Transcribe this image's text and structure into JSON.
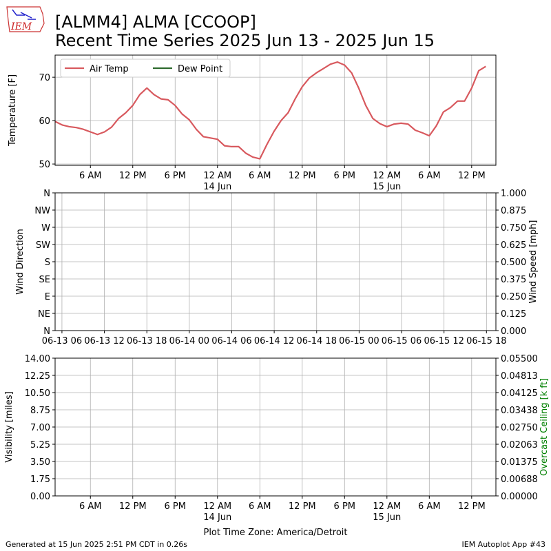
{
  "logo": "IEM",
  "title": "[ALMM4] ALMA [CCOOP]",
  "subtitle": "Recent Time Series 2025 Jun 13 - 2025 Jun 15",
  "generated": "Generated at 15 Jun 2025 2:51 PM CDT in 0.26s",
  "app": "IEM Autoplot App #43",
  "chart_data": [
    {
      "type": "line",
      "ylabel": "Temperature [F]",
      "grid": true,
      "legend": "upper left",
      "xlim": [
        "2025-06-13T01:00",
        "2025-06-15T15:26"
      ],
      "xticks": [
        {
          "value": "2025-06-13T06:00",
          "label": "6 AM"
        },
        {
          "value": "2025-06-13T12:00",
          "label": "12 PM"
        },
        {
          "value": "2025-06-13T18:00",
          "label": "6 PM"
        },
        {
          "value": "2025-06-14T00:00",
          "label": "12 AM\n14 Jun"
        },
        {
          "value": "2025-06-14T06:00",
          "label": "6 AM"
        },
        {
          "value": "2025-06-14T12:00",
          "label": "12 PM"
        },
        {
          "value": "2025-06-14T18:00",
          "label": "6 PM"
        },
        {
          "value": "2025-06-15T00:00",
          "label": "12 AM\n15 Jun"
        },
        {
          "value": "2025-06-15T06:00",
          "label": "6 AM"
        },
        {
          "value": "2025-06-15T12:00",
          "label": "12 PM"
        }
      ],
      "ylim": [
        49.7,
        75.1
      ],
      "yticks": [
        50,
        60,
        70
      ],
      "x": [
        "2025-06-13T01:00",
        "2025-06-13T02:00",
        "2025-06-13T03:00",
        "2025-06-13T04:00",
        "2025-06-13T05:00",
        "2025-06-13T06:00",
        "2025-06-13T07:00",
        "2025-06-13T08:00",
        "2025-06-13T09:00",
        "2025-06-13T10:00",
        "2025-06-13T11:00",
        "2025-06-13T12:00",
        "2025-06-13T13:00",
        "2025-06-13T14:00",
        "2025-06-13T15:00",
        "2025-06-13T16:00",
        "2025-06-13T17:00",
        "2025-06-13T18:00",
        "2025-06-13T19:00",
        "2025-06-13T20:00",
        "2025-06-13T21:00",
        "2025-06-13T22:00",
        "2025-06-13T23:00",
        "2025-06-14T00:00",
        "2025-06-14T01:00",
        "2025-06-14T02:00",
        "2025-06-14T03:00",
        "2025-06-14T04:00",
        "2025-06-14T05:00",
        "2025-06-14T06:00",
        "2025-06-14T07:00",
        "2025-06-14T08:00",
        "2025-06-14T09:00",
        "2025-06-14T10:00",
        "2025-06-14T11:00",
        "2025-06-14T12:00",
        "2025-06-14T13:00",
        "2025-06-14T14:00",
        "2025-06-14T15:00",
        "2025-06-14T16:00",
        "2025-06-14T17:00",
        "2025-06-14T18:00",
        "2025-06-14T19:00",
        "2025-06-14T20:00",
        "2025-06-14T21:00",
        "2025-06-14T22:00",
        "2025-06-14T23:00",
        "2025-06-15T00:00",
        "2025-06-15T01:00",
        "2025-06-15T02:00",
        "2025-06-15T03:00",
        "2025-06-15T04:00",
        "2025-06-15T05:00",
        "2025-06-15T06:00",
        "2025-06-15T07:00",
        "2025-06-15T08:00",
        "2025-06-15T09:00",
        "2025-06-15T10:00",
        "2025-06-15T11:00",
        "2025-06-15T12:00",
        "2025-06-15T13:00",
        "2025-06-15T14:00"
      ],
      "series": [
        {
          "name": "Air Temp",
          "color": "#d8595e",
          "values": [
            59.8,
            59.0,
            58.6,
            58.4,
            58.0,
            57.4,
            56.8,
            57.4,
            58.5,
            60.5,
            61.8,
            63.5,
            66.0,
            67.5,
            66.0,
            65.0,
            64.8,
            63.5,
            61.5,
            60.2,
            58.0,
            56.3,
            56.0,
            55.7,
            54.2,
            54.0,
            54.0,
            52.5,
            51.6,
            51.2,
            54.5,
            57.5,
            60.0,
            61.8,
            65.0,
            67.8,
            69.8,
            71.0,
            72.0,
            73.0,
            73.5,
            72.8,
            71.0,
            67.5,
            63.5,
            60.5,
            59.3,
            58.6,
            59.2,
            59.4,
            59.2,
            57.8,
            57.2,
            56.5,
            58.8,
            62.0,
            63.0,
            64.5,
            64.5,
            67.5,
            71.5,
            72.5
          ]
        },
        {
          "name": "Dew Point",
          "color": "#2d6a2d",
          "values": [
            null,
            null,
            null,
            null,
            null,
            null,
            null,
            null,
            null,
            null,
            null,
            null,
            null,
            null,
            null,
            null,
            null,
            null,
            null,
            null,
            null,
            null,
            null,
            null,
            null,
            null,
            null,
            null,
            null,
            null,
            null,
            null,
            null,
            null,
            null,
            null,
            null,
            null,
            null,
            null,
            null,
            null,
            null,
            null,
            null,
            null,
            null,
            null,
            null,
            null,
            null,
            null,
            null,
            null,
            null,
            null,
            null,
            null,
            null,
            null,
            null,
            null
          ]
        }
      ]
    },
    {
      "type": "line",
      "ylabel": "Wind Direction",
      "y2label": "Wind Speed [mph]",
      "grid": true,
      "xlim": [
        "2025-06-13T05:02",
        "2025-06-15T19:20"
      ],
      "xticks": [
        {
          "value": "2025-06-13T06:00",
          "label": "06-13 06"
        },
        {
          "value": "2025-06-13T12:00",
          "label": "06-13 12"
        },
        {
          "value": "2025-06-13T18:00",
          "label": "06-13 18"
        },
        {
          "value": "2025-06-14T00:00",
          "label": "06-14 00"
        },
        {
          "value": "2025-06-14T06:00",
          "label": "06-14 06"
        },
        {
          "value": "2025-06-14T12:00",
          "label": "06-14 12"
        },
        {
          "value": "2025-06-14T18:00",
          "label": "06-14 18"
        },
        {
          "value": "2025-06-15T00:00",
          "label": "06-15 00"
        },
        {
          "value": "2025-06-15T06:00",
          "label": "06-15 06"
        },
        {
          "value": "2025-06-15T12:00",
          "label": "06-15 12"
        },
        {
          "value": "2025-06-15T18:00",
          "label": "06-15 18"
        }
      ],
      "ylim": [
        0,
        360
      ],
      "yticks": [
        {
          "value": 0,
          "label": "N"
        },
        {
          "value": 45,
          "label": "NE"
        },
        {
          "value": 90,
          "label": "E"
        },
        {
          "value": 135,
          "label": "SE"
        },
        {
          "value": 180,
          "label": "S"
        },
        {
          "value": 225,
          "label": "SW"
        },
        {
          "value": 270,
          "label": "W"
        },
        {
          "value": 315,
          "label": "NW"
        },
        {
          "value": 360,
          "label": "N"
        }
      ],
      "y2lim": [
        0,
        1
      ],
      "y2ticks": [
        {
          "value": 0,
          "label": "0.000"
        },
        0.125,
        {
          "value": 0.25,
          "label": "0.250"
        },
        0.375,
        {
          "value": 0.5,
          "label": "0.500"
        },
        0.625,
        {
          "value": 0.75,
          "label": "0.750"
        },
        0.875,
        {
          "value": 1,
          "label": "1.000"
        }
      ]
    },
    {
      "type": "line",
      "ylabel": "Visibility [miles]",
      "y2label": "Overcast Ceiling [k ft]",
      "y2label_color": "#008000",
      "xlabel": "Plot Time Zone: America/Detroit",
      "grid": true,
      "xlim": [
        "2025-06-13T01:00",
        "2025-06-15T15:26"
      ],
      "xticks": [
        {
          "value": "2025-06-13T06:00",
          "label": "6 AM"
        },
        {
          "value": "2025-06-13T12:00",
          "label": "12 PM"
        },
        {
          "value": "2025-06-13T18:00",
          "label": "6 PM"
        },
        {
          "value": "2025-06-14T00:00",
          "label": "12 AM\n14 Jun"
        },
        {
          "value": "2025-06-14T06:00",
          "label": "6 AM"
        },
        {
          "value": "2025-06-14T12:00",
          "label": "12 PM"
        },
        {
          "value": "2025-06-14T18:00",
          "label": "6 PM"
        },
        {
          "value": "2025-06-15T00:00",
          "label": "12 AM\n15 Jun"
        },
        {
          "value": "2025-06-15T06:00",
          "label": "6 AM"
        },
        {
          "value": "2025-06-15T12:00",
          "label": "12 PM"
        }
      ],
      "ylim": [
        0,
        14
      ],
      "yticks": [
        {
          "value": 0,
          "label": "0.00"
        },
        1.75,
        {
          "value": 3.5,
          "label": "3.50"
        },
        5.25,
        {
          "value": 7,
          "label": "7.00"
        },
        8.75,
        {
          "value": 10.5,
          "label": "10.50"
        },
        12.25,
        {
          "value": 14,
          "label": "14.00"
        }
      ],
      "y2lim": [
        0,
        0.055
      ],
      "y2ticks": [
        {
          "value": 0,
          "label": "0.00000"
        },
        {
          "value": 0.006875,
          "label": "0.00688"
        },
        {
          "value": 0.01375,
          "label": "0.01375"
        },
        {
          "value": 0.020625,
          "label": "0.02063"
        },
        {
          "value": 0.0275,
          "label": "0.02750"
        },
        {
          "value": 0.034375,
          "label": "0.03438"
        },
        {
          "value": 0.04125,
          "label": "0.04125"
        },
        {
          "value": 0.048125,
          "label": "0.04813"
        },
        {
          "value": 0.055,
          "label": "0.05500"
        }
      ]
    }
  ]
}
